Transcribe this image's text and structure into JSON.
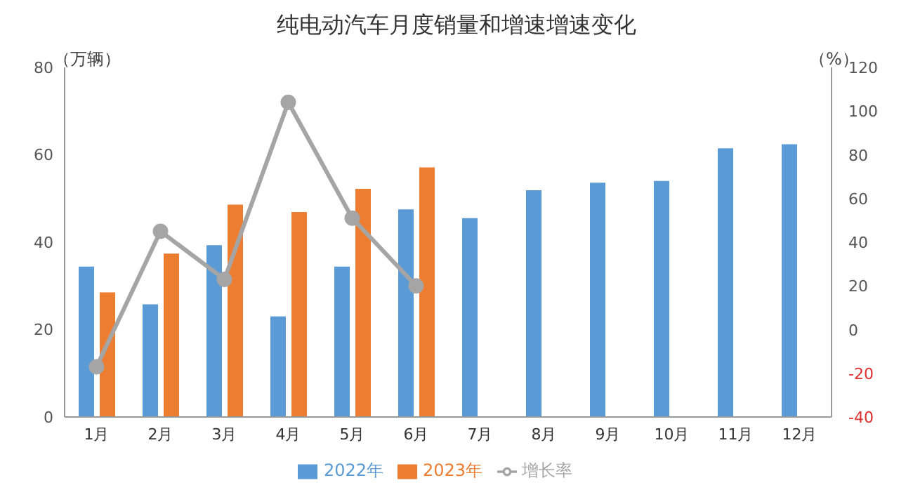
{
  "chart_data": {
    "type": "bar",
    "title": "纯电动汽车月度销量和增速增速变化",
    "ylabel": "（万辆）",
    "y2label": "（%）",
    "categories": [
      "1月",
      "2月",
      "3月",
      "4月",
      "5月",
      "6月",
      "7月",
      "8月",
      "9月",
      "10月",
      "11月",
      "12月"
    ],
    "series": [
      {
        "name": "2022年",
        "color": "#5b9bd5",
        "values": [
          34.4,
          25.8,
          39.3,
          23.0,
          34.4,
          47.5,
          45.5,
          51.9,
          53.6,
          54.0,
          61.5,
          62.4
        ]
      },
      {
        "name": "2023年",
        "color": "#ed7d31",
        "values": [
          28.5,
          37.4,
          48.6,
          46.9,
          52.2,
          57.1,
          null,
          null,
          null,
          null,
          null,
          null
        ]
      },
      {
        "name": "增长率",
        "type": "line",
        "axis": "y2",
        "color": "#a5a5a5",
        "marker": "circle",
        "values": [
          -17,
          45,
          23,
          104,
          51,
          20,
          null,
          null,
          null,
          null,
          null,
          null
        ]
      }
    ],
    "ylim": [
      0,
      80
    ],
    "yticks": [
      0,
      20,
      40,
      60,
      80
    ],
    "y2lim": [
      -40,
      120
    ],
    "y2ticks": [
      -40,
      -20,
      0,
      20,
      40,
      60,
      80,
      100,
      120
    ],
    "grid": false,
    "legend": "bottom"
  }
}
